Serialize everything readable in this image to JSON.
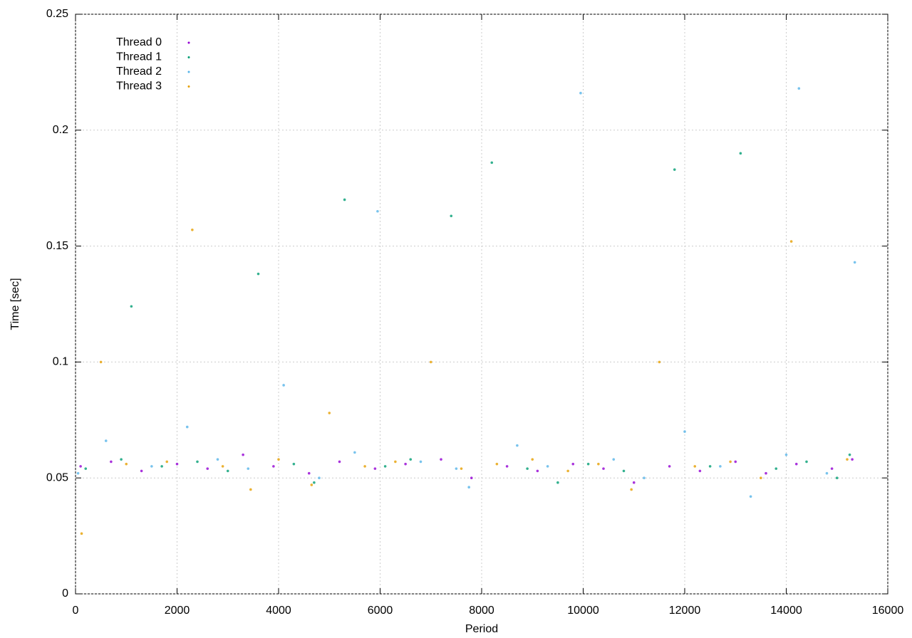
{
  "chart_data": {
    "type": "scatter",
    "x_label": "Period",
    "y_label": "Time [sec]",
    "xlim": [
      0,
      16000
    ],
    "xticks": [
      0,
      2000,
      4000,
      6000,
      8000,
      10000,
      12000,
      14000,
      16000
    ],
    "ylim": [
      0,
      0.25
    ],
    "yticks": [
      0,
      0.05,
      0.1,
      0.15,
      0.2,
      0.25
    ],
    "grid": true,
    "legend": "top-left",
    "series": [
      {
        "name": "Thread 0",
        "color": "#9400d3",
        "x": [
          100,
          700,
          1300,
          2000,
          2600,
          3300,
          3900,
          4600,
          5200,
          5900,
          6500,
          7200,
          7800,
          8500,
          9100,
          9800,
          10400,
          11000,
          11700,
          12300,
          13000,
          13600,
          14200,
          14900,
          15300
        ],
        "values": [
          0.055,
          0.057,
          0.053,
          0.056,
          0.054,
          0.06,
          0.055,
          0.052,
          0.057,
          0.054,
          0.056,
          0.058,
          0.05,
          0.055,
          0.053,
          0.056,
          0.054,
          0.048,
          0.055,
          0.053,
          0.057,
          0.052,
          0.056,
          0.054,
          0.058
        ]
      },
      {
        "name": "Thread 1",
        "color": "#009e73",
        "x": [
          200,
          900,
          1100,
          1700,
          2400,
          3000,
          3600,
          4300,
          4700,
          5300,
          6100,
          6600,
          7400,
          8200,
          8900,
          9500,
          10100,
          10800,
          11800,
          12500,
          13100,
          13800,
          14400,
          15000,
          15250
        ],
        "values": [
          0.054,
          0.058,
          0.124,
          0.055,
          0.057,
          0.053,
          0.138,
          0.056,
          0.048,
          0.17,
          0.055,
          0.058,
          0.163,
          0.186,
          0.054,
          0.048,
          0.056,
          0.053,
          0.183,
          0.055,
          0.19,
          0.054,
          0.057,
          0.05,
          0.06
        ]
      },
      {
        "name": "Thread 2",
        "color": "#56b4e9",
        "x": [
          50,
          600,
          1500,
          2200,
          2800,
          3400,
          4100,
          4800,
          5500,
          5950,
          6800,
          7500,
          7750,
          8700,
          9300,
          9950,
          10600,
          11200,
          12000,
          12700,
          13300,
          14000,
          14250,
          14800,
          15350
        ],
        "values": [
          0.052,
          0.066,
          0.055,
          0.072,
          0.058,
          0.054,
          0.09,
          0.05,
          0.061,
          0.165,
          0.057,
          0.054,
          0.046,
          0.064,
          0.055,
          0.216,
          0.058,
          0.05,
          0.07,
          0.055,
          0.042,
          0.06,
          0.218,
          0.052,
          0.143
        ]
      },
      {
        "name": "Thread 3",
        "color": "#e69f00",
        "x": [
          120,
          500,
          1000,
          1800,
          2300,
          2900,
          3450,
          4000,
          4650,
          5000,
          5700,
          6300,
          7000,
          7600,
          8300,
          9000,
          9700,
          10300,
          10950,
          11500,
          12200,
          12900,
          13500,
          14100,
          15200
        ],
        "values": [
          0.026,
          0.1,
          0.056,
          0.057,
          0.157,
          0.055,
          0.045,
          0.058,
          0.047,
          0.078,
          0.055,
          0.057,
          0.1,
          0.054,
          0.056,
          0.058,
          0.053,
          0.056,
          0.045,
          0.1,
          0.055,
          0.057,
          0.05,
          0.152,
          0.058
        ]
      }
    ]
  }
}
